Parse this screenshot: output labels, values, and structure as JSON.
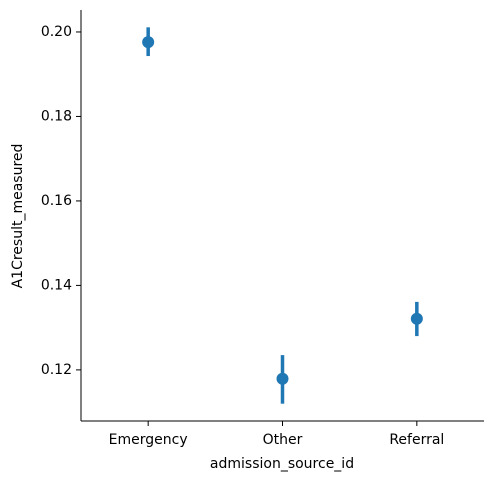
{
  "chart_data": {
    "type": "point",
    "xlabel": "admission_source_id",
    "ylabel": "A1Cresult_measured",
    "categories": [
      "Emergency",
      "Other",
      "Referral"
    ],
    "values": [
      0.1976,
      0.1179,
      0.1321
    ],
    "ci_low": [
      0.1943,
      0.112,
      0.128
    ],
    "ci_high": [
      0.2011,
      0.1235,
      0.1361
    ],
    "color": "#1f77b4",
    "ylim": [
      0.1079,
      0.2052
    ],
    "yticks": [
      {
        "value": 0.12,
        "label": "0.12"
      },
      {
        "value": 0.14,
        "label": "0.14"
      },
      {
        "value": 0.16,
        "label": "0.16"
      },
      {
        "value": 0.18,
        "label": "0.18"
      },
      {
        "value": 0.2,
        "label": "0.20"
      }
    ]
  }
}
